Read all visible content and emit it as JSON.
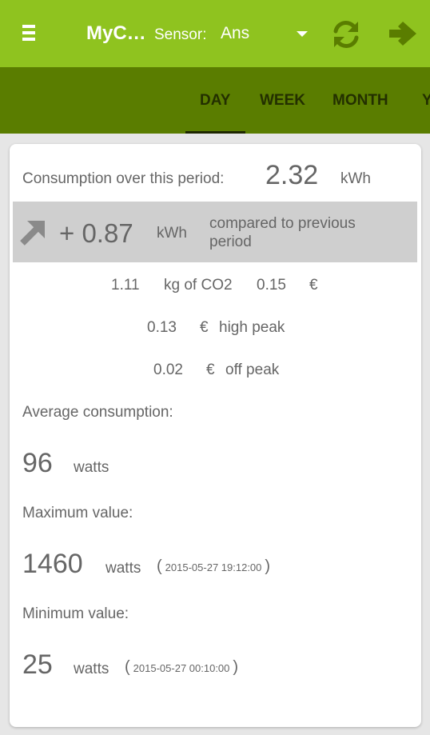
{
  "header": {
    "title": "MyC…",
    "sensor_label": "Sensor:",
    "sensor_value": "Ans",
    "bar_color": "#8fc31f",
    "icons": [
      "menu-icon",
      "refresh-icon",
      "arrow-right-icon"
    ]
  },
  "tabs": [
    {
      "label": "DAY",
      "active": true
    },
    {
      "label": "WEEK",
      "active": false
    },
    {
      "label": "MONTH",
      "active": false
    },
    {
      "label": "YEAR",
      "active": false
    }
  ],
  "summary": {
    "consumption_label": "Consumption over this period:",
    "consumption_value": "2.32",
    "consumption_unit": "kWh"
  },
  "comparison": {
    "icon": "trend-up-arrow-icon",
    "value": "+ 0.87",
    "unit": "kWh",
    "text": "compared to previous period",
    "text_line1": "compared to previous",
    "text_line2": "period"
  },
  "co2": {
    "value": "1.11",
    "unit": "kg of CO2"
  },
  "cost": {
    "value": "0.15",
    "currency": "€"
  },
  "high_peak": {
    "value": "0.13",
    "currency": "€",
    "label": "high peak"
  },
  "off_peak": {
    "value": "0.02",
    "currency": "€",
    "label": "off peak"
  },
  "average": {
    "label": "Average consumption:",
    "value": "96",
    "unit": "watts"
  },
  "maximum": {
    "label": "Maximum value:",
    "value": "1460",
    "unit": "watts",
    "timestamp": "2015-05-27 19:12:00"
  },
  "minimum": {
    "label": "Minimum value:",
    "value": "25",
    "unit": "watts",
    "timestamp": "2015-05-27 00:10:00"
  }
}
